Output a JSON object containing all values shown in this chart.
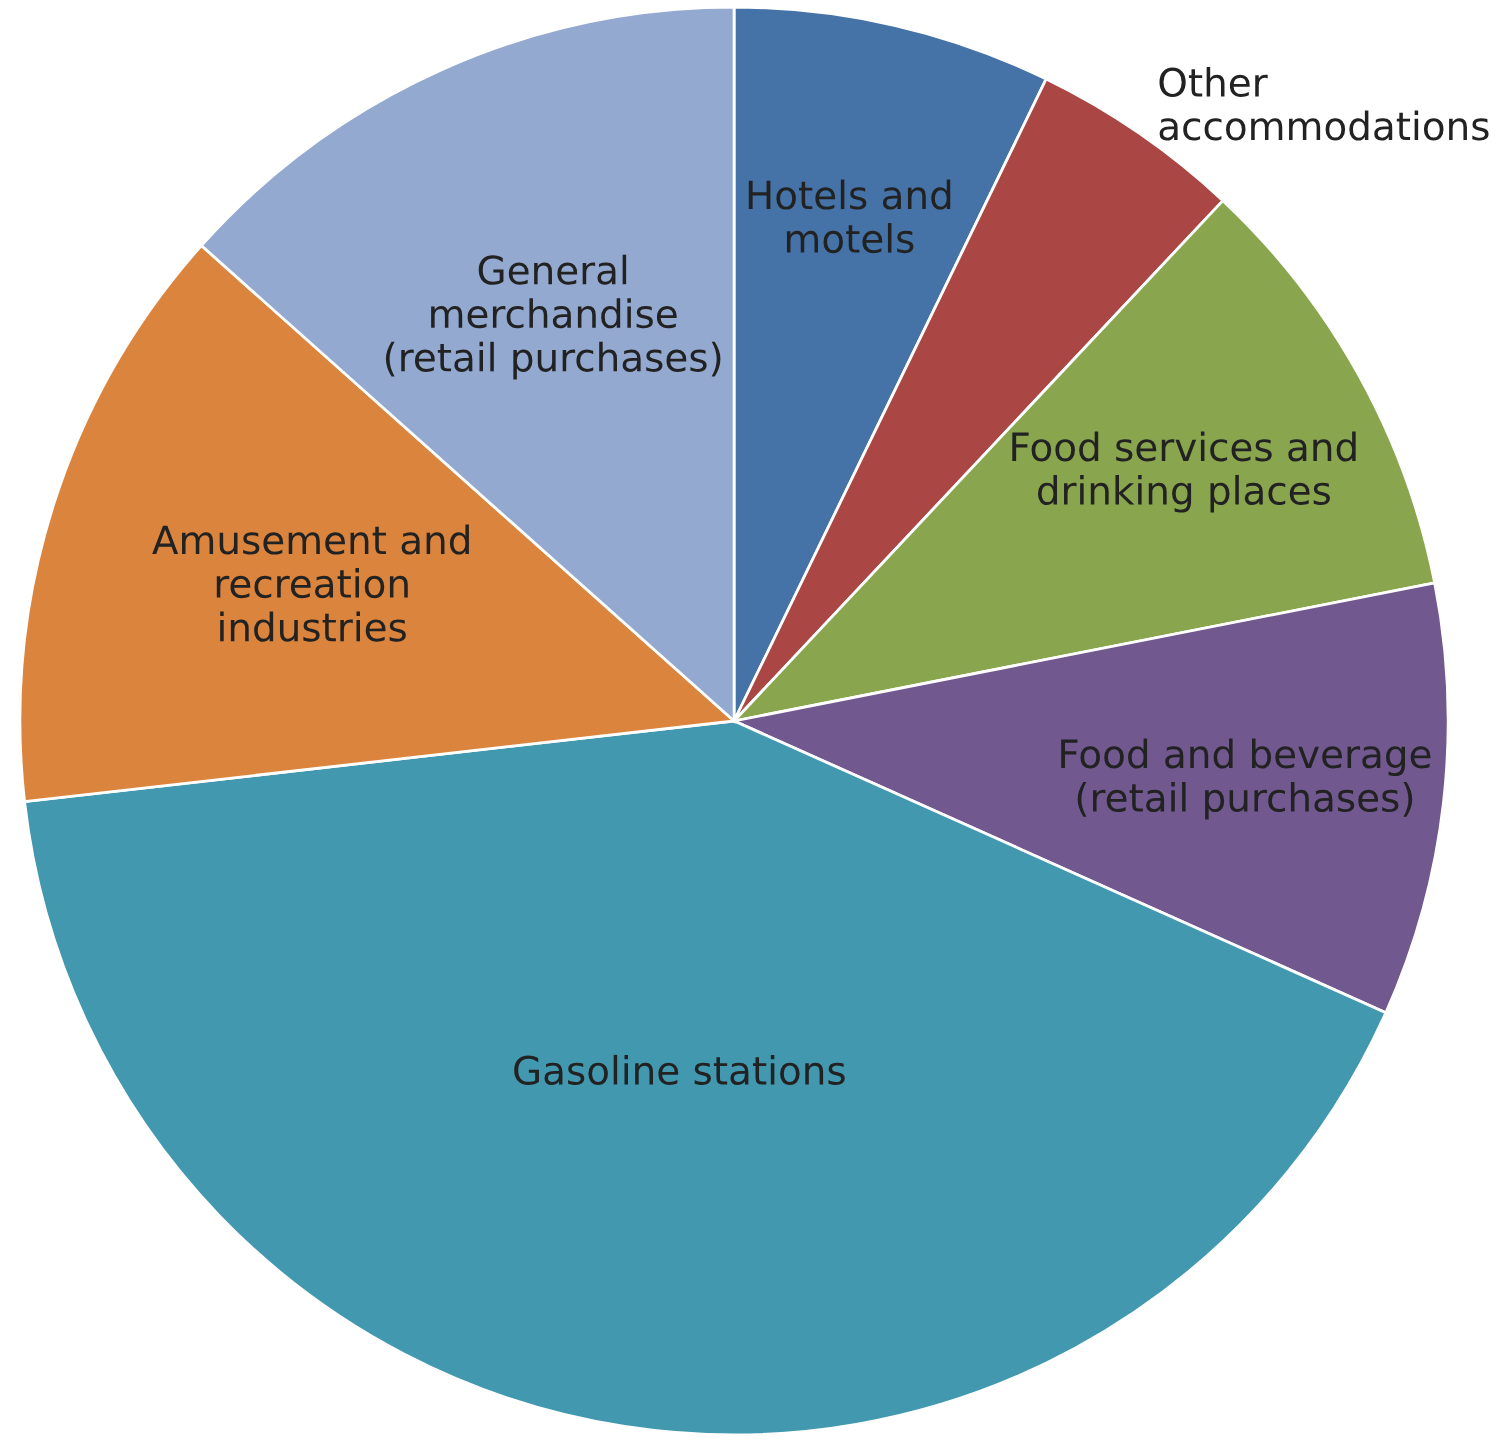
{
  "chart_data": {
    "type": "pie",
    "categories": [
      "Hotels and motels",
      "Other accommodations",
      "Food services and drinking places",
      "Food and beverage (retail purchases)",
      "Gasoline stations",
      "Amusement and recreation industries",
      "General merchandise (retail purchases)"
    ],
    "values": [
      7.2,
      4.8,
      9.9,
      9.8,
      41.5,
      13.4,
      13.4
    ],
    "colors": [
      "#4572a7",
      "#aa4643",
      "#89a54e",
      "#71588f",
      "#4198af",
      "#db843d",
      "#93a9cf"
    ]
  }
}
